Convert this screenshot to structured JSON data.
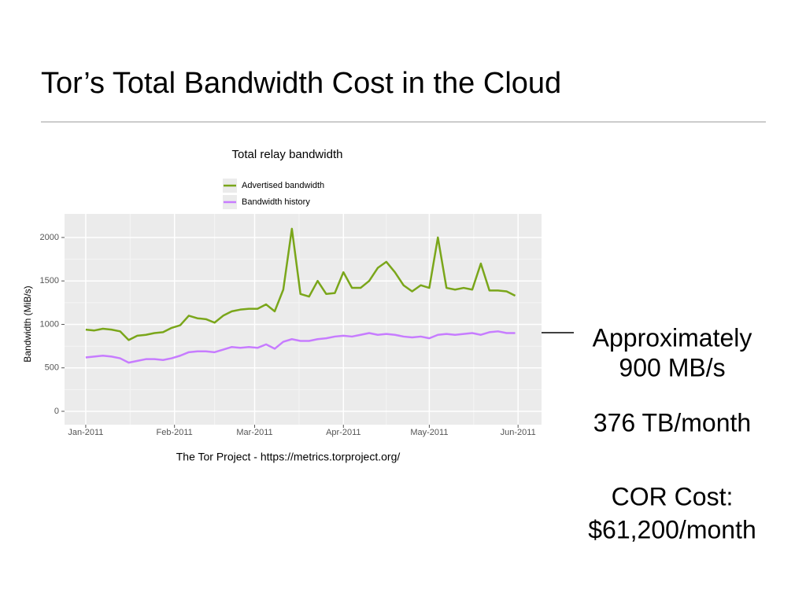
{
  "slide_title": "Tor’s Total Bandwidth Cost in the Cloud",
  "chart_data": {
    "type": "line",
    "title": "Total relay bandwidth",
    "ylabel": "Bandwidth (MiB/s)",
    "caption": "The Tor Project - https://metrics.torproject.org/",
    "x": [
      0,
      3,
      6,
      9,
      12,
      15,
      18,
      21,
      24,
      27,
      30,
      33,
      36,
      39,
      42,
      45,
      48,
      51,
      54,
      57,
      60,
      63,
      66,
      69,
      72,
      75,
      78,
      81,
      84,
      87,
      90,
      93,
      96,
      99,
      102,
      105,
      108,
      111,
      114,
      117,
      120,
      123,
      126,
      129,
      132,
      135,
      138,
      141,
      144,
      147,
      150
    ],
    "series": [
      {
        "name": "Advertised bandwidth",
        "color": "#7aa61a",
        "values": [
          940,
          930,
          950,
          940,
          920,
          820,
          870,
          880,
          900,
          910,
          960,
          990,
          1100,
          1070,
          1060,
          1020,
          1100,
          1150,
          1170,
          1180,
          1180,
          1230,
          1150,
          1400,
          2100,
          1350,
          1320,
          1500,
          1350,
          1360,
          1600,
          1420,
          1420,
          1500,
          1650,
          1720,
          1600,
          1450,
          1380,
          1450,
          1420,
          2000,
          1420,
          1400,
          1420,
          1400,
          1700,
          1390,
          1390,
          1380,
          1330
        ]
      },
      {
        "name": "Bandwidth history",
        "color": "#c77cff",
        "values": [
          620,
          630,
          640,
          630,
          610,
          560,
          580,
          600,
          600,
          590,
          610,
          640,
          680,
          690,
          690,
          680,
          710,
          740,
          730,
          740,
          730,
          770,
          720,
          800,
          830,
          810,
          810,
          830,
          840,
          860,
          870,
          860,
          880,
          900,
          880,
          890,
          880,
          860,
          850,
          860,
          840,
          880,
          890,
          880,
          890,
          900,
          880,
          910,
          920,
          900,
          900
        ]
      }
    ],
    "xlim": [
      -7.4,
      159.2
    ],
    "xticks": [
      {
        "value": 0,
        "label": "Jan-2011"
      },
      {
        "value": 31,
        "label": "Feb-2011"
      },
      {
        "value": 59,
        "label": "Mar-2011"
      },
      {
        "value": 90,
        "label": "Apr-2011"
      },
      {
        "value": 120,
        "label": "May-2011"
      },
      {
        "value": 151,
        "label": "Jun-2011"
      }
    ],
    "ylim": [
      -154,
      2271
    ],
    "yticks": [
      0,
      500,
      1000,
      1500,
      2000
    ],
    "grid": true,
    "legend": "top"
  },
  "annotations": [
    "Approximately",
    "900 MB/s",
    "376 TB/month",
    "COR Cost:",
    "$61,200/month"
  ]
}
